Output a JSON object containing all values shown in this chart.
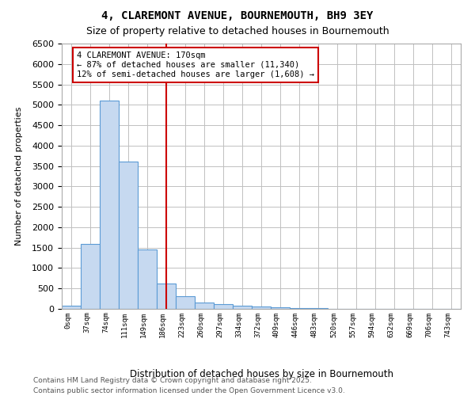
{
  "title_line1": "4, CLAREMONT AVENUE, BOURNEMOUTH, BH9 3EY",
  "title_line2": "Size of property relative to detached houses in Bournemouth",
  "xlabel": "Distribution of detached houses by size in Bournemouth",
  "ylabel": "Number of detached properties",
  "categories": [
    "0sqm",
    "37sqm",
    "74sqm",
    "111sqm",
    "149sqm",
    "186sqm",
    "223sqm",
    "260sqm",
    "297sqm",
    "334sqm",
    "372sqm",
    "409sqm",
    "446sqm",
    "483sqm",
    "520sqm",
    "557sqm",
    "594sqm",
    "632sqm",
    "669sqm",
    "706sqm",
    "743sqm"
  ],
  "bar_values": [
    75,
    1600,
    5100,
    3600,
    1450,
    620,
    310,
    155,
    110,
    75,
    50,
    30,
    20,
    10,
    5,
    3,
    2,
    1,
    1,
    0,
    0
  ],
  "bar_color": "#c6d9f0",
  "bar_edge_color": "#5b9bd5",
  "red_line_index": 5,
  "annotation_text": "4 CLAREMONT AVENUE: 170sqm\n← 87% of detached houses are smaller (11,340)\n12% of semi-detached houses are larger (1,608) →",
  "annotation_box_color": "#ffffff",
  "annotation_box_edge_color": "#cc0000",
  "ylim": [
    0,
    6500
  ],
  "yticks": [
    0,
    500,
    1000,
    1500,
    2000,
    2500,
    3000,
    3500,
    4000,
    4500,
    5000,
    5500,
    6000,
    6500
  ],
  "footnote1": "Contains HM Land Registry data © Crown copyright and database right 2025.",
  "footnote2": "Contains public sector information licensed under the Open Government Licence v3.0.",
  "bg_color": "#ffffff",
  "grid_color": "#c0c0c0"
}
